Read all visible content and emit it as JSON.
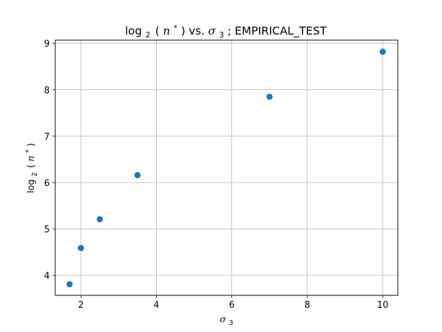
{
  "chart_data": {
    "type": "scatter",
    "title": {
      "log": "log",
      "sub": "2",
      "paren_open": "(",
      "var": "n",
      "sup": "*",
      "paren_close": ")",
      "vs": " vs. ",
      "sigma": "σ",
      "sigma_sub": "3",
      "suffix": "; EMPIRICAL_TEST"
    },
    "xlabel": {
      "sigma": "σ",
      "sub": "3"
    },
    "ylabel": {
      "log": "log",
      "sub": "2",
      "paren_open": "(",
      "var": "n",
      "sup": "*",
      "paren_close": ")"
    },
    "xlim": [
      1.32,
      10.4
    ],
    "ylim": [
      3.57,
      9.07
    ],
    "xticks": [
      2,
      4,
      6,
      8,
      10
    ],
    "yticks": [
      4,
      5,
      6,
      7,
      8,
      9
    ],
    "grid": true,
    "point_color": "#1f77b4",
    "points": [
      {
        "x": 1.7,
        "y": 3.81
      },
      {
        "x": 2.0,
        "y": 4.59
      },
      {
        "x": 2.5,
        "y": 5.21
      },
      {
        "x": 3.5,
        "y": 6.16
      },
      {
        "x": 7.0,
        "y": 7.85
      },
      {
        "x": 10.0,
        "y": 8.82
      }
    ]
  }
}
